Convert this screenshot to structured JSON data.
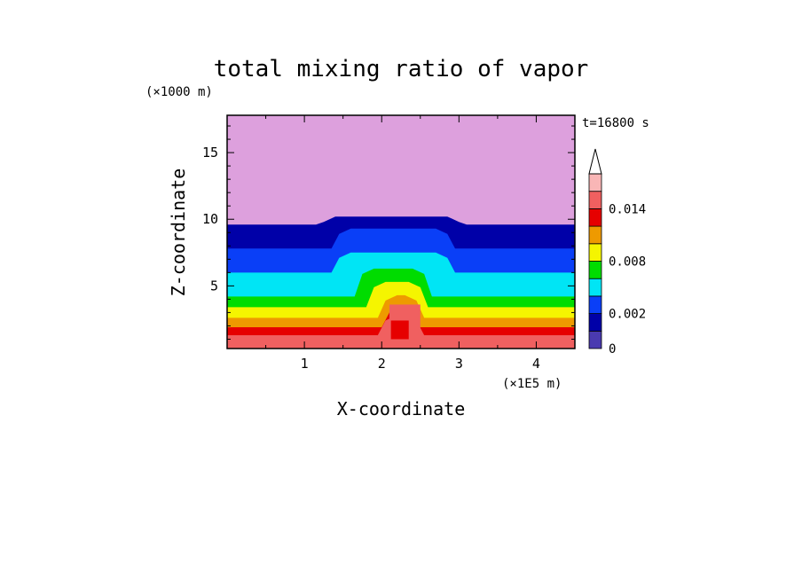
{
  "chart_data": {
    "type": "heatmap",
    "title": "total mixing ratio of vapor",
    "xlabel": "X-coordinate",
    "ylabel": "Z-coordinate",
    "x_unit": "(×1E5 m)",
    "y_unit": "(×1000 m)",
    "time_label": "t=16800 s",
    "xlim": [
      0,
      4.5
    ],
    "ylim": [
      0.3,
      17.8
    ],
    "x_ticks": [
      1,
      2,
      3,
      4
    ],
    "y_ticks": [
      5,
      10,
      15
    ],
    "colorbar": {
      "levels": [
        0,
        0.001,
        0.002,
        0.004,
        0.006,
        0.008,
        0.01,
        0.012,
        0.014,
        0.016
      ],
      "colors": [
        "#4a3ab0",
        "#0000a8",
        "#0a3ff7",
        "#00e5f5",
        "#00dc00",
        "#f5f500",
        "#ee9a00",
        "#e60000",
        "#f06060",
        "#f9b6b6"
      ],
      "labeled_ticks": [
        {
          "value": 0,
          "label": "0"
        },
        {
          "value": 0.002,
          "label": "0.002"
        },
        {
          "value": 0.008,
          "label": "0.008"
        },
        {
          "value": 0.014,
          "label": "0.014"
        }
      ],
      "extend": "max"
    },
    "background_color": "#dda0dd",
    "layers_z_top": [
      {
        "z": 9.6,
        "value_range": "0.0005-0.001"
      },
      {
        "z": 7.8,
        "value_range": "0.001-0.002"
      },
      {
        "z": 6.0,
        "value_range": "0.002-0.004"
      },
      {
        "z": 4.2,
        "value_range": "0.004-0.006"
      },
      {
        "z": 3.4,
        "value_range": "0.006-0.008"
      },
      {
        "z": 2.6,
        "value_range": "0.008-0.010"
      },
      {
        "z": 1.9,
        "value_range": "0.010-0.012"
      },
      {
        "z": 1.3,
        "value_range": "0.012-0.014"
      }
    ],
    "plume": {
      "x_center": 2.2,
      "z_top": 10.2,
      "description": "convective plume"
    }
  }
}
